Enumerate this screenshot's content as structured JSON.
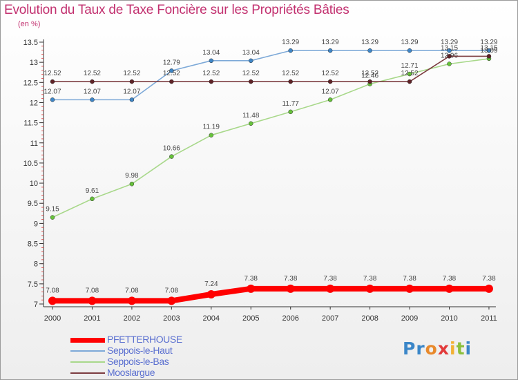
{
  "title": "Evolution du Taux de Taxe Foncière sur les Propriétés Bâties",
  "subtitle": "(en %)",
  "logo": {
    "letters": [
      "P",
      "r",
      "o",
      "x",
      "i",
      "t",
      "i"
    ],
    "colors": [
      "#3a86c8",
      "#3a86c8",
      "#e8892b",
      "#e23a3a",
      "#f2b134",
      "#8bbf3c",
      "#3a86c8"
    ]
  },
  "chart_data": {
    "type": "line",
    "title": "Evolution du Taux de Taxe Foncière sur les Propriétés Bâties",
    "ylabel": "(en %)",
    "x": [
      "2000",
      "2001",
      "2002",
      "2003",
      "2004",
      "2005",
      "2006",
      "2007",
      "2008",
      "2009",
      "2010",
      "2011"
    ],
    "ylim": [
      7,
      13.5
    ],
    "yticks": [
      "7",
      "7.5",
      "8",
      "8.5",
      "9",
      "9.5",
      "10",
      "10.5",
      "11",
      "11.5",
      "12",
      "12.5",
      "13",
      "13.5"
    ],
    "grid": false,
    "legend_position": "bottom-left",
    "series": [
      {
        "name": "PFETTERHOUSE",
        "color": "#ff0000",
        "marker_color": "#ff0000",
        "emphasis": true,
        "values": [
          7.08,
          7.08,
          7.08,
          7.08,
          7.24,
          7.38,
          7.38,
          7.38,
          7.38,
          7.38,
          7.38,
          7.38
        ],
        "labels": [
          "7.08",
          "7.08",
          "7.08",
          "7.08",
          "7.24",
          "7.38",
          "7.38",
          "7.38",
          "7.38",
          "7.38",
          "7.38",
          "7.38"
        ]
      },
      {
        "name": "Seppois-le-Haut",
        "color": "#7da9d8",
        "marker_color": "#3f86c6",
        "values": [
          12.07,
          12.07,
          12.07,
          12.79,
          13.04,
          13.04,
          13.29,
          13.29,
          13.29,
          13.29,
          13.29,
          13.29
        ],
        "labels": [
          "12.07",
          "12.07",
          "12.07",
          "12.79",
          "13.04",
          "13.04",
          "13.29",
          "13.29",
          "13.29",
          "13.29",
          "13.29",
          "13.29"
        ]
      },
      {
        "name": "Seppois-le-Bas",
        "color": "#a8d88a",
        "marker_color": "#66c23a",
        "values": [
          9.15,
          9.61,
          9.98,
          10.66,
          11.19,
          11.48,
          11.77,
          12.07,
          12.46,
          12.71,
          12.96,
          13.09
        ],
        "labels": [
          "9.15",
          "9.61",
          "9.98",
          "10.66",
          "11.19",
          "11.48",
          "11.77",
          "12.07",
          "12.46",
          "12.71",
          "12.96",
          "13.09"
        ]
      },
      {
        "name": "Mooslargue",
        "color": "#7b3b3f",
        "marker_color": "#5e2226",
        "values": [
          12.52,
          12.52,
          12.52,
          12.52,
          12.52,
          12.52,
          12.52,
          12.52,
          12.52,
          12.52,
          13.15,
          13.15
        ],
        "labels": [
          "12.52",
          "12.52",
          "12.52",
          "12.52",
          "12.52",
          "12.52",
          "12.52",
          "12.52",
          "12.52",
          "12.52",
          "13.15",
          "13.15"
        ]
      }
    ]
  }
}
